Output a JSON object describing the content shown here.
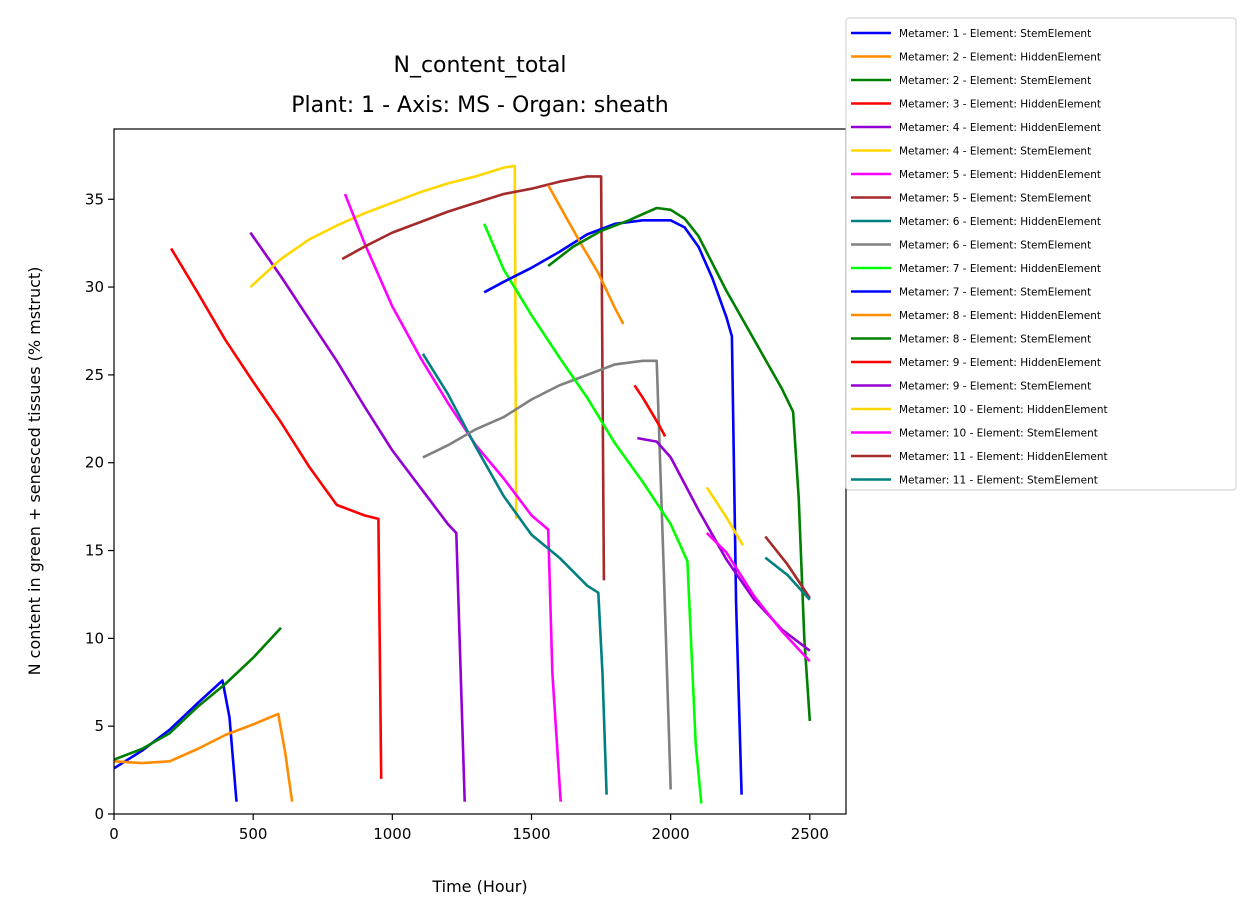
{
  "chart_data": {
    "type": "line",
    "title": "N_content_total",
    "subtitle": "Plant: 1 - Axis: MS - Organ: sheath",
    "xlabel": "Time (Hour)",
    "ylabel": "N content in green + senesced tissues (% mstruct)",
    "xlim": [
      0,
      2630
    ],
    "ylim": [
      0,
      39
    ],
    "xticks": [
      0,
      500,
      1000,
      1500,
      2000,
      2500
    ],
    "yticks": [
      0,
      5,
      10,
      15,
      20,
      25,
      30,
      35
    ],
    "grid": false,
    "legend_position": "outside-top-right",
    "series": [
      {
        "name": "Metamer: 1 - Element: StemElement",
        "color": "#0000ff",
        "x": [
          0,
          100,
          200,
          300,
          390,
          415,
          440
        ],
        "y": [
          2.6,
          3.6,
          4.8,
          6.3,
          7.6,
          5.5,
          0.7
        ]
      },
      {
        "name": "Metamer: 2 - Element: HiddenElement",
        "color": "#ff8c00",
        "x": [
          0,
          100,
          200,
          300,
          400,
          500,
          590,
          615,
          640
        ],
        "y": [
          3.0,
          2.9,
          3.0,
          3.7,
          4.5,
          5.1,
          5.7,
          3.5,
          0.7
        ]
      },
      {
        "name": "Metamer: 2 - Element: StemElement",
        "color": "#008000",
        "x": [
          0,
          100,
          200,
          300,
          400,
          500,
          600
        ],
        "y": [
          3.1,
          3.7,
          4.6,
          6.1,
          7.4,
          8.9,
          10.6
        ]
      },
      {
        "name": "Metamer: 3 - Element: HiddenElement",
        "color": "#ff0000",
        "x": [
          205,
          300,
          400,
          500,
          600,
          700,
          800,
          900,
          950,
          960
        ],
        "y": [
          32.2,
          29.7,
          27.0,
          24.6,
          22.3,
          19.8,
          17.6,
          17.0,
          16.8,
          2.0
        ]
      },
      {
        "name": "Metamer: 4 - Element: HiddenElement",
        "color": "#9400d3",
        "x": [
          490,
          600,
          700,
          800,
          900,
          1000,
          1100,
          1200,
          1230,
          1260
        ],
        "y": [
          33.1,
          30.6,
          28.2,
          25.8,
          23.2,
          20.7,
          18.6,
          16.5,
          16.0,
          0.7
        ]
      },
      {
        "name": "Metamer: 4 - Element: StemElement",
        "color": "#ffd700",
        "x": [
          490,
          600,
          700,
          800,
          900,
          1000,
          1100,
          1200,
          1300,
          1400,
          1440,
          1445
        ],
        "y": [
          30.0,
          31.6,
          32.7,
          33.5,
          34.2,
          34.8,
          35.4,
          35.9,
          36.3,
          36.8,
          36.9,
          16.8
        ]
      },
      {
        "name": "Metamer: 5 - Element: HiddenElement",
        "color": "#ff00ff",
        "x": [
          830,
          900,
          1000,
          1100,
          1200,
          1300,
          1400,
          1500,
          1560,
          1575,
          1605
        ],
        "y": [
          35.3,
          32.5,
          28.9,
          26.0,
          23.4,
          21.0,
          19.1,
          17.0,
          16.2,
          8.0,
          0.7
        ]
      },
      {
        "name": "Metamer: 5 - Element: StemElement",
        "color": "#a52a2a",
        "x": [
          820,
          900,
          1000,
          1100,
          1200,
          1300,
          1400,
          1500,
          1600,
          1700,
          1750,
          1760
        ],
        "y": [
          31.6,
          32.3,
          33.1,
          33.7,
          34.3,
          34.8,
          35.3,
          35.6,
          36.0,
          36.3,
          36.3,
          13.3
        ]
      },
      {
        "name": "Metamer: 6 - Element: HiddenElement",
        "color": "#008080",
        "x": [
          1110,
          1200,
          1300,
          1400,
          1500,
          1600,
          1700,
          1740,
          1755,
          1770
        ],
        "y": [
          26.2,
          23.9,
          20.9,
          18.1,
          15.9,
          14.6,
          13.0,
          12.6,
          8.0,
          1.1
        ]
      },
      {
        "name": "Metamer: 6 - Element: StemElement",
        "color": "#808080",
        "x": [
          1110,
          1200,
          1300,
          1400,
          1500,
          1600,
          1700,
          1800,
          1900,
          1950,
          1975,
          2000
        ],
        "y": [
          20.3,
          21.0,
          21.9,
          22.6,
          23.6,
          24.4,
          25.0,
          25.6,
          25.8,
          25.8,
          14.0,
          1.4
        ]
      },
      {
        "name": "Metamer: 7 - Element: HiddenElement",
        "color": "#00ff00",
        "x": [
          1330,
          1400,
          1500,
          1600,
          1700,
          1800,
          1900,
          2000,
          2060,
          2090,
          2110
        ],
        "y": [
          33.6,
          31.0,
          28.4,
          26.0,
          23.7,
          21.1,
          18.9,
          16.5,
          14.4,
          4.0,
          0.6
        ]
      },
      {
        "name": "Metamer: 7 - Element: StemElement",
        "color": "#0000ff",
        "x": [
          1330,
          1400,
          1500,
          1600,
          1700,
          1800,
          1900,
          2000,
          2050,
          2100,
          2150,
          2200,
          2220,
          2235,
          2255
        ],
        "y": [
          29.7,
          30.3,
          31.1,
          32.0,
          33.0,
          33.6,
          33.8,
          33.8,
          33.4,
          32.3,
          30.5,
          28.3,
          27.2,
          12.0,
          1.1
        ]
      },
      {
        "name": "Metamer: 8 - Element: HiddenElement",
        "color": "#ff8c00",
        "x": [
          1560,
          1620,
          1680,
          1740,
          1800,
          1830
        ],
        "y": [
          35.8,
          34.1,
          32.4,
          30.8,
          28.8,
          27.9
        ]
      },
      {
        "name": "Metamer: 8 - Element: StemElement",
        "color": "#008000",
        "x": [
          1560,
          1650,
          1750,
          1850,
          1950,
          2000,
          2050,
          2100,
          2200,
          2300,
          2400,
          2440,
          2460,
          2480,
          2500
        ],
        "y": [
          31.2,
          32.3,
          33.2,
          33.8,
          34.5,
          34.4,
          33.9,
          32.9,
          29.8,
          27.0,
          24.2,
          22.9,
          18.0,
          10.0,
          5.3
        ]
      },
      {
        "name": "Metamer: 9 - Element: HiddenElement",
        "color": "#ff0000",
        "x": [
          1870,
          1900,
          1930,
          1960,
          1980
        ],
        "y": [
          24.4,
          23.7,
          22.9,
          22.1,
          21.5
        ]
      },
      {
        "name": "Metamer: 9 - Element: StemElement",
        "color": "#9400d3",
        "x": [
          1880,
          1950,
          2000,
          2100,
          2200,
          2300,
          2400,
          2500
        ],
        "y": [
          21.4,
          21.2,
          20.3,
          17.3,
          14.5,
          12.2,
          10.5,
          9.3
        ]
      },
      {
        "name": "Metamer: 10 - Element: HiddenElement",
        "color": "#ffd700",
        "x": [
          2130,
          2200,
          2260
        ],
        "y": [
          18.6,
          16.9,
          15.3
        ]
      },
      {
        "name": "Metamer: 10 - Element: StemElement",
        "color": "#ff00ff",
        "x": [
          2130,
          2200,
          2300,
          2400,
          2500
        ],
        "y": [
          16.0,
          14.9,
          12.4,
          10.4,
          8.7
        ]
      },
      {
        "name": "Metamer: 11 - Element: HiddenElement",
        "color": "#a52a2a",
        "x": [
          2340,
          2420,
          2500
        ],
        "y": [
          15.8,
          14.2,
          12.3
        ]
      },
      {
        "name": "Metamer: 11 - Element: StemElement",
        "color": "#008080",
        "x": [
          2340,
          2420,
          2500
        ],
        "y": [
          14.6,
          13.6,
          12.2
        ]
      }
    ]
  }
}
